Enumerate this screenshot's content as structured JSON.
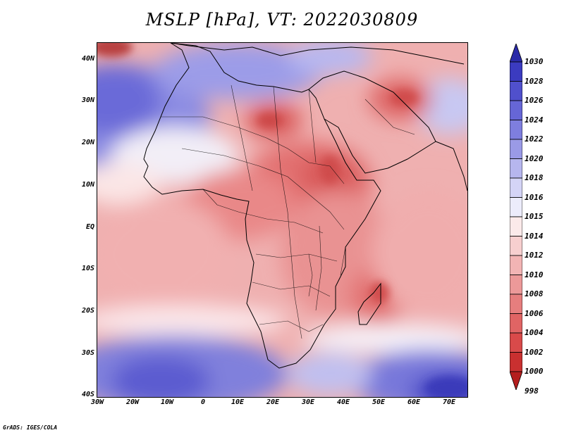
{
  "title": "MSLP [hPa], VT: 2022030809",
  "footer": "GrADS: IGES/COLA",
  "map": {
    "lat_labels": [
      "40N",
      "30N",
      "20N",
      "10N",
      "EQ",
      "10S",
      "20S",
      "30S",
      "40S"
    ],
    "lon_labels": [
      "30W",
      "20W",
      "10W",
      "0",
      "10E",
      "20E",
      "30E",
      "40E",
      "50E",
      "60E",
      "70E"
    ]
  },
  "colorbar": {
    "labels": [
      "1030",
      "1028",
      "1026",
      "1024",
      "1022",
      "1020",
      "1018",
      "1016",
      "1015",
      "1014",
      "1012",
      "1010",
      "1008",
      "1006",
      "1004",
      "1002",
      "1000",
      "998"
    ],
    "colors": [
      "#2a2aa8",
      "#3b3bc0",
      "#5050cc",
      "#6666d6",
      "#7e7ede",
      "#9a9ae6",
      "#b6b6ee",
      "#d4d4f6",
      "#ececfb",
      "#fbeaea",
      "#f7cfcf",
      "#f2b4b4",
      "#ec9999",
      "#e67e7e",
      "#e06464",
      "#d94a4a",
      "#c93030",
      "#b41e1e"
    ]
  }
}
